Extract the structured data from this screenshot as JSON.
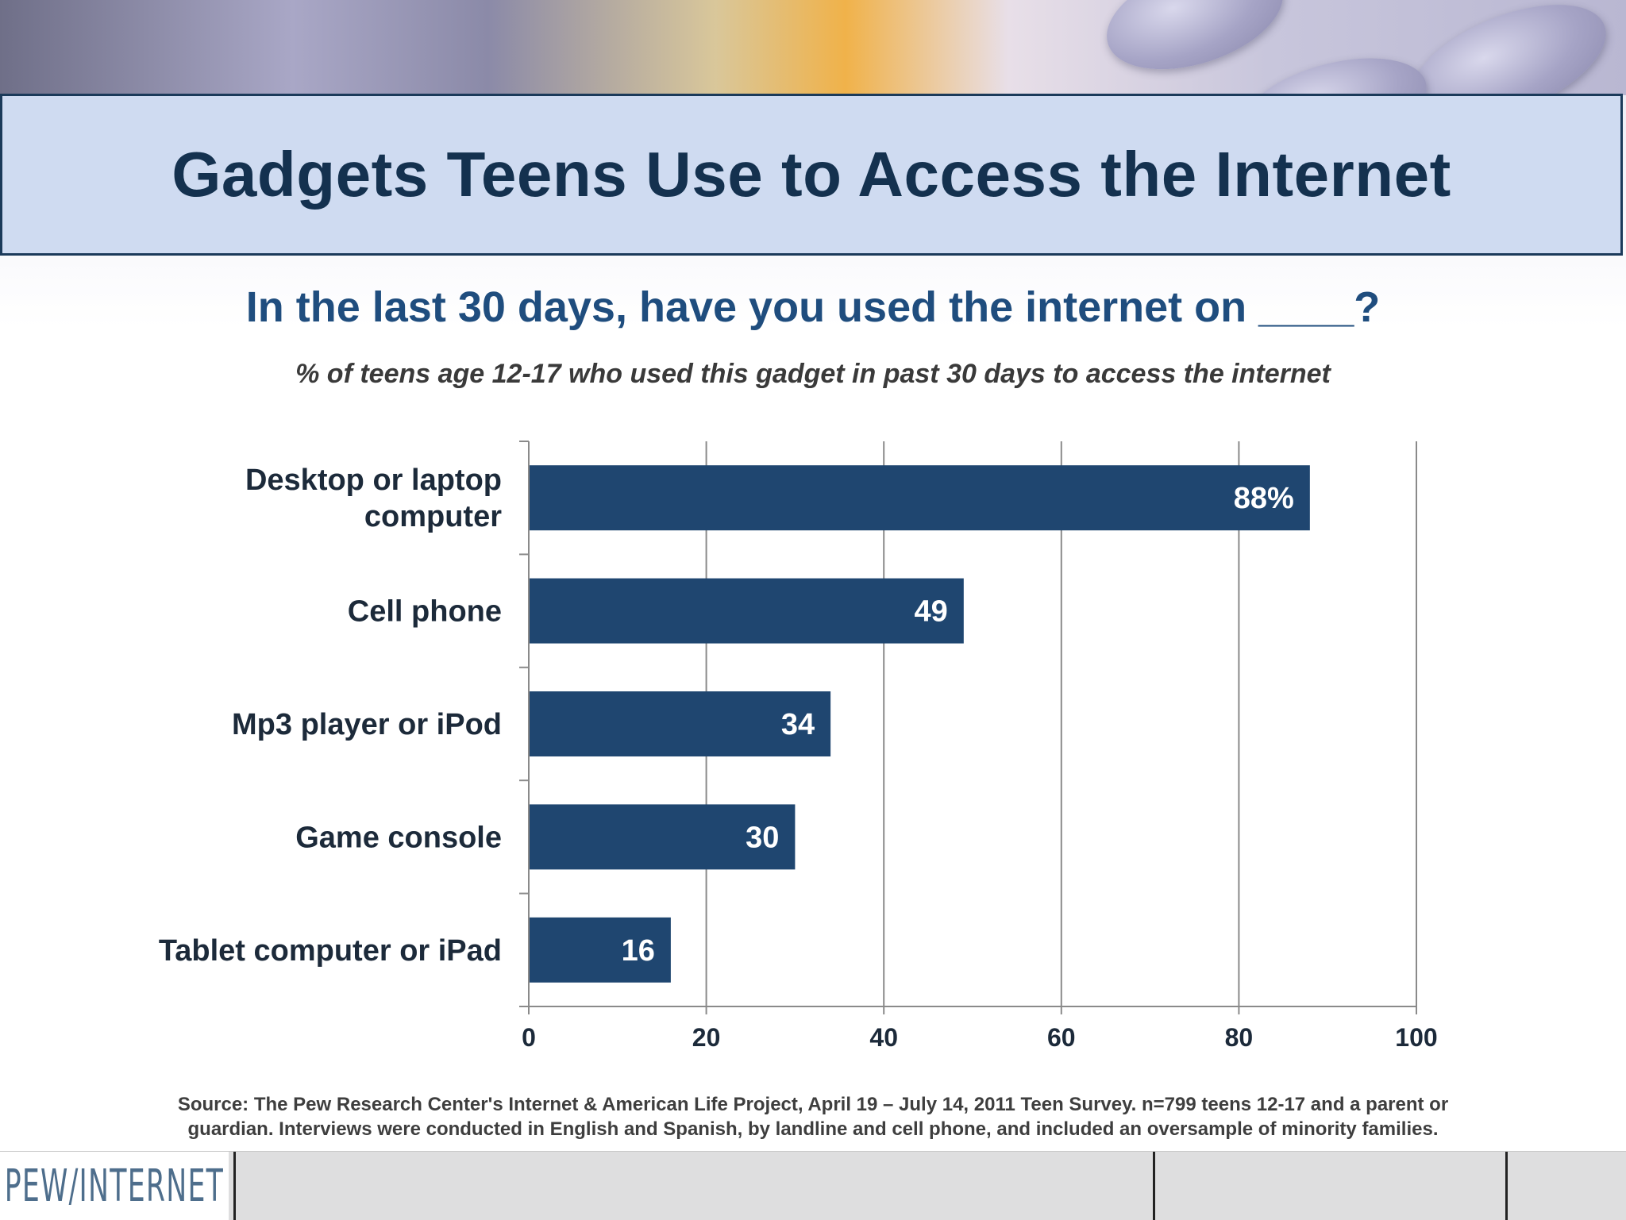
{
  "slide": {
    "title": "Gadgets Teens Use to Access the Internet",
    "question": "In the last 30 days, have you used the internet on ____?",
    "subtitle": "% of teens age 12-17 who used this gadget in past 30 days to access the internet",
    "source_line1": "Source: The Pew Research Center's Internet & American Life Project, April 19 – July 14, 2011 Teen Survey. n=799 teens 12-17 and a parent or",
    "source_line2": "guardian. Interviews were conducted in English and Spanish, by landline and cell phone, and included an oversample of minority families."
  },
  "footer": {
    "logo_text": "PEW/INTERNET"
  },
  "colors": {
    "bar": "#1f4670",
    "grid": "#8a8a8a",
    "label": "#1c2a3a",
    "title_bg": "#cfdbf1",
    "title_text": "#14314f"
  },
  "chart_data": {
    "type": "bar",
    "orientation": "horizontal",
    "categories": [
      [
        "Desktop or laptop",
        "computer"
      ],
      [
        "Cell phone"
      ],
      [
        "Mp3 player or iPod"
      ],
      [
        "Game console"
      ],
      [
        "Tablet computer or iPad"
      ]
    ],
    "values": [
      88,
      49,
      34,
      30,
      16
    ],
    "value_labels": [
      "88%",
      "49",
      "34",
      "30",
      "16"
    ],
    "xlim": [
      0,
      100
    ],
    "xticks": [
      0,
      20,
      40,
      60,
      80,
      100
    ],
    "grid": true,
    "legend": "none"
  }
}
